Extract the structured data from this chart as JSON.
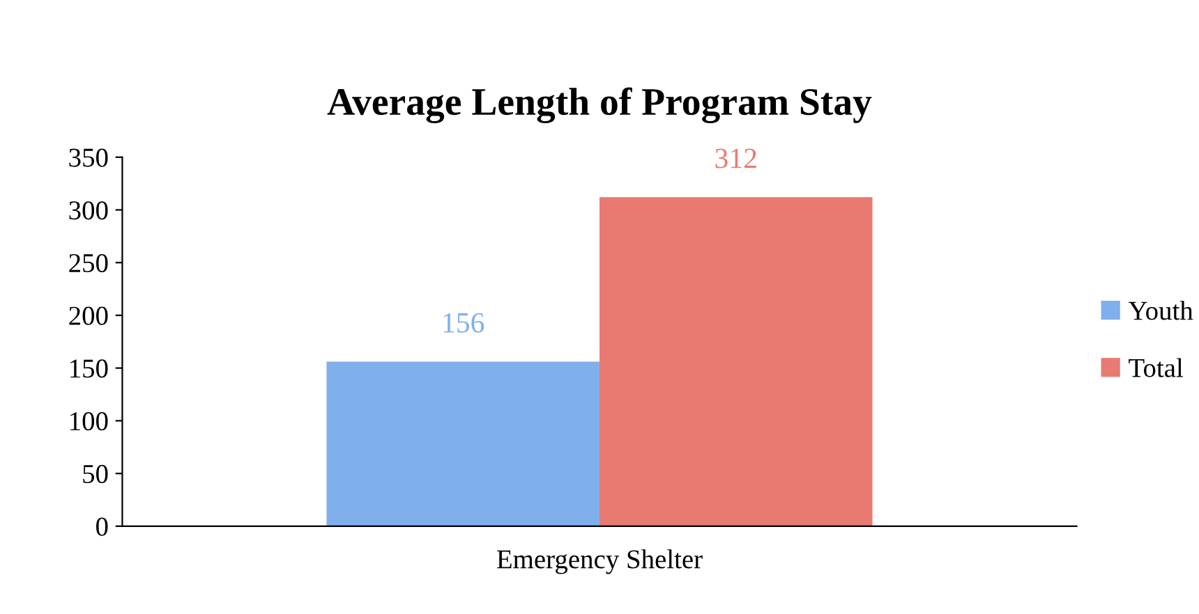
{
  "chart_data": {
    "type": "bar",
    "title": "Average Length of Program Stay",
    "categories": [
      "Emergency Shelter"
    ],
    "series": [
      {
        "name": "Youth",
        "color": "#7fb0ec",
        "values": [
          156
        ]
      },
      {
        "name": "Total",
        "color": "#e97a72",
        "values": [
          312
        ]
      }
    ],
    "ylim": [
      0,
      350
    ],
    "yticks": [
      0,
      50,
      100,
      150,
      200,
      250,
      300,
      350
    ],
    "data_labels": true,
    "legend": "right",
    "grid": false
  }
}
